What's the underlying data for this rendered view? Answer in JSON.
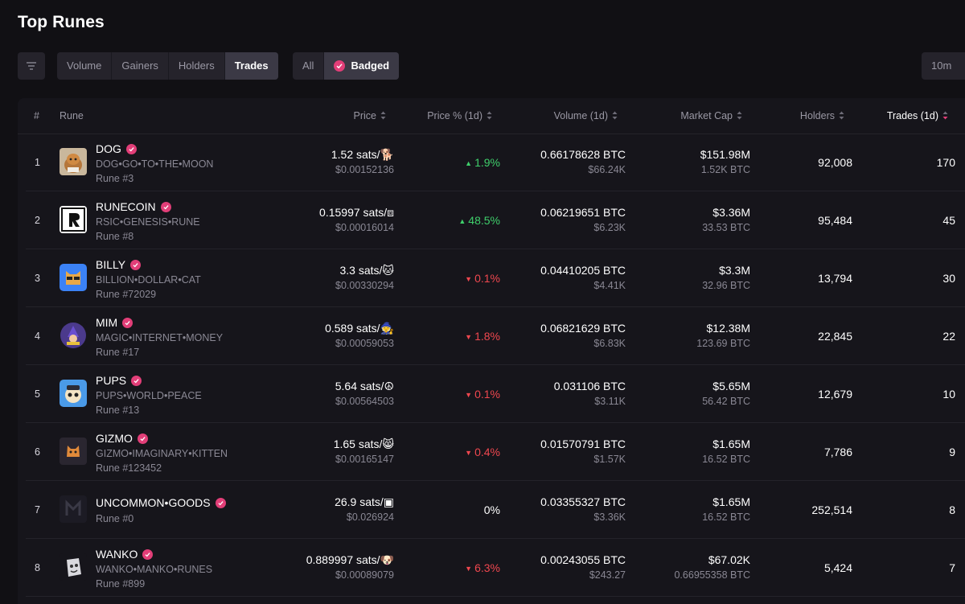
{
  "page": {
    "title": "Top Runes"
  },
  "toolbar": {
    "sort_tabs": [
      {
        "label": "Volume",
        "active": false
      },
      {
        "label": "Gainers",
        "active": false
      },
      {
        "label": "Holders",
        "active": false
      },
      {
        "label": "Trades",
        "active": true
      }
    ],
    "filter_tabs": [
      {
        "label": "All",
        "active": false
      },
      {
        "label": "Badged",
        "active": true
      }
    ],
    "time_label": "10m"
  },
  "colors": {
    "accent": "#e23e78",
    "up": "#3fcf6b",
    "down": "#f0474f",
    "background": "#111014",
    "table_bg": "#16151b"
  },
  "table": {
    "headers": {
      "rank": "#",
      "rune": "Rune",
      "price": "Price",
      "price_pct": "Price % (1d)",
      "volume": "Volume (1d)",
      "market_cap": "Market Cap",
      "holders": "Holders",
      "trades": "Trades (1d)"
    },
    "rows": [
      {
        "rank": "1",
        "name": "DOG",
        "spaced": "DOG•GO•TO•THE•MOON",
        "rune_no": "Rune #3",
        "price": "1.52 sats/🐕",
        "price_usd": "$0.00152136",
        "pct": "1.9%",
        "dir": "up",
        "volume": "0.66178628 BTC",
        "volume_usd": "$66.24K",
        "market_cap": "$151.98M",
        "market_cap_btc": "1.52K BTC",
        "holders": "92,008",
        "trades": "170",
        "logo": "dog-logo"
      },
      {
        "rank": "2",
        "name": "RUNECOIN",
        "spaced": "RSIC•GENESIS•RUNE",
        "rune_no": "Rune #8",
        "price": "0.15997 sats/⧈",
        "price_usd": "$0.00016014",
        "pct": "48.5%",
        "dir": "up",
        "volume": "0.06219651 BTC",
        "volume_usd": "$6.23K",
        "market_cap": "$3.36M",
        "market_cap_btc": "33.53 BTC",
        "holders": "95,484",
        "trades": "45",
        "logo": "runecoin-logo"
      },
      {
        "rank": "3",
        "name": "BILLY",
        "spaced": "BILLION•DOLLAR•CAT",
        "rune_no": "Rune #72029",
        "price": "3.3 sats/🐱",
        "price_usd": "$0.00330294",
        "pct": "0.1%",
        "dir": "down",
        "volume": "0.04410205 BTC",
        "volume_usd": "$4.41K",
        "market_cap": "$3.3M",
        "market_cap_btc": "32.96 BTC",
        "holders": "13,794",
        "trades": "30",
        "logo": "billy-logo"
      },
      {
        "rank": "4",
        "name": "MIM",
        "spaced": "MAGIC•INTERNET•MONEY",
        "rune_no": "Rune #17",
        "price": "0.589 sats/🧙",
        "price_usd": "$0.00059053",
        "pct": "1.8%",
        "dir": "down",
        "volume": "0.06821629 BTC",
        "volume_usd": "$6.83K",
        "market_cap": "$12.38M",
        "market_cap_btc": "123.69 BTC",
        "holders": "22,845",
        "trades": "22",
        "logo": "mim-logo"
      },
      {
        "rank": "5",
        "name": "PUPS",
        "spaced": "PUPS•WORLD•PEACE",
        "rune_no": "Rune #13",
        "price": "5.64 sats/☮",
        "price_usd": "$0.00564503",
        "pct": "0.1%",
        "dir": "down",
        "volume": "0.031106 BTC",
        "volume_usd": "$3.11K",
        "market_cap": "$5.65M",
        "market_cap_btc": "56.42 BTC",
        "holders": "12,679",
        "trades": "10",
        "logo": "pups-logo"
      },
      {
        "rank": "6",
        "name": "GIZMO",
        "spaced": "GIZMO•IMAGINARY•KITTEN",
        "rune_no": "Rune #123452",
        "price": "1.65 sats/😸",
        "price_usd": "$0.00165147",
        "pct": "0.4%",
        "dir": "down",
        "volume": "0.01570791 BTC",
        "volume_usd": "$1.57K",
        "market_cap": "$1.65M",
        "market_cap_btc": "16.52 BTC",
        "holders": "7,786",
        "trades": "9",
        "logo": "gizmo-logo"
      },
      {
        "rank": "7",
        "name": "UNCOMMON•GOODS",
        "spaced": "",
        "rune_no": "Rune #0",
        "price": "26.9 sats/▣",
        "price_usd": "$0.026924",
        "pct": "0%",
        "dir": "flat",
        "volume": "0.03355327 BTC",
        "volume_usd": "$3.36K",
        "market_cap": "$1.65M",
        "market_cap_btc": "16.52 BTC",
        "holders": "252,514",
        "trades": "8",
        "logo": "uncommon-goods-logo"
      },
      {
        "rank": "8",
        "name": "WANKO",
        "spaced": "WANKO•MANKO•RUNES",
        "rune_no": "Rune #899",
        "price": "0.889997 sats/🐶",
        "price_usd": "$0.00089079",
        "pct": "6.3%",
        "dir": "down",
        "volume": "0.00243055 BTC",
        "volume_usd": "$243.27",
        "market_cap": "$67.02K",
        "market_cap_btc": "0.66955358 BTC",
        "holders": "5,424",
        "trades": "7",
        "logo": "wanko-logo"
      }
    ]
  }
}
